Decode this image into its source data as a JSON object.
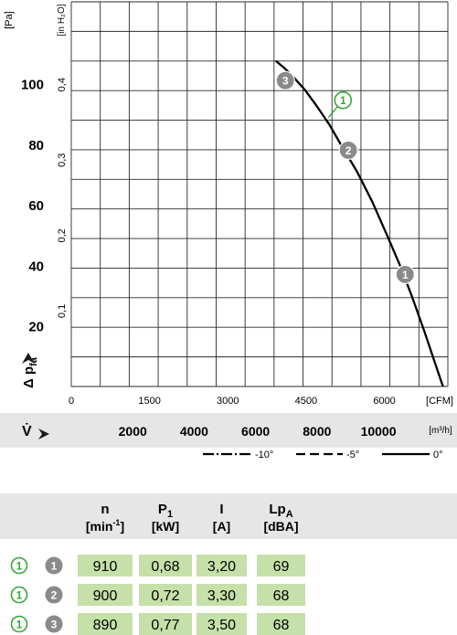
{
  "chart_data": {
    "type": "line",
    "ylabel_pa": "[Pa]",
    "ylabel_inh2o": "[in H₂O]",
    "ylabel_main": "Δ p",
    "ylabel_sub": "fa",
    "xlabel_cfm_unit": "[CFM]",
    "xlabel_m3h_unit": "[m³/h]",
    "xlabel_symbol": "V̇",
    "y_pa_ticks": [
      "20",
      "40",
      "60",
      "80",
      "100"
    ],
    "y_pa_values": [
      20,
      40,
      60,
      80,
      100
    ],
    "y_inh2o_ticks": [
      "0,1",
      "0,2",
      "0,3",
      "0,4"
    ],
    "y_inh2o_values": [
      0.1,
      0.2,
      0.3,
      0.4
    ],
    "x_cfm_ticks": [
      "0",
      "1500",
      "3000",
      "4500",
      "6000"
    ],
    "x_cfm_values": [
      0,
      1500,
      3000,
      4500,
      6000
    ],
    "x_m3h_ticks": [
      "2000",
      "4000",
      "6000",
      "8000",
      "10000"
    ],
    "x_m3h_values": [
      2000,
      4000,
      6000,
      8000,
      10000
    ],
    "x_range_m3h": [
      0,
      12260
    ],
    "y_range_pa": [
      0,
      127
    ],
    "grid": true,
    "series": [
      {
        "style": "solid",
        "label_num": "1",
        "x": [
          6660,
          6950,
          7200,
          7600,
          8000,
          8400,
          8800,
          9300,
          9800,
          10300,
          10700,
          11100,
          11500,
          11900,
          12200
        ],
        "y": [
          107.5,
          105,
          102.5,
          98,
          92.5,
          86.5,
          79.5,
          71,
          61,
          49.5,
          40,
          29.5,
          18,
          6,
          -3
        ]
      }
    ],
    "operating_points": [
      {
        "label": "3",
        "x": 6970,
        "y": 101
      },
      {
        "label": "2",
        "x": 9020,
        "y": 78
      },
      {
        "label": "1",
        "x": 10870,
        "y": 37
      }
    ],
    "curve_marker": {
      "label": "1",
      "x": 8400,
      "y": 90
    },
    "legend": [
      {
        "style": "dashdot",
        "label": "-10°"
      },
      {
        "style": "dashed",
        "label": "-5°"
      },
      {
        "style": "solid",
        "label": "0°"
      }
    ]
  },
  "table": {
    "headers": [
      {
        "main": "n",
        "unit": "[min",
        "sup": "-1",
        "unit_end": "]"
      },
      {
        "main": "P",
        "sub": "1",
        "unit": "[kW]"
      },
      {
        "main": "I",
        "unit": "[A]"
      },
      {
        "main": "Lp",
        "sub": "A",
        "unit": "[dBA]"
      }
    ],
    "rows": [
      {
        "curve": "1",
        "point": "1",
        "values": [
          "910",
          "0,68",
          "3,20",
          "69"
        ]
      },
      {
        "curve": "1",
        "point": "2",
        "values": [
          "900",
          "0,72",
          "3,30",
          "68"
        ]
      },
      {
        "curve": "1",
        "point": "3",
        "values": [
          "890",
          "0,77",
          "3,50",
          "68"
        ]
      }
    ]
  },
  "colors": {
    "header_band": "#e6e6e6",
    "cell_green": "#c5e0a8",
    "curve_marker": "#3aa53a",
    "point_marker": "#8a8a8a",
    "grid": "#2a2a2a"
  }
}
